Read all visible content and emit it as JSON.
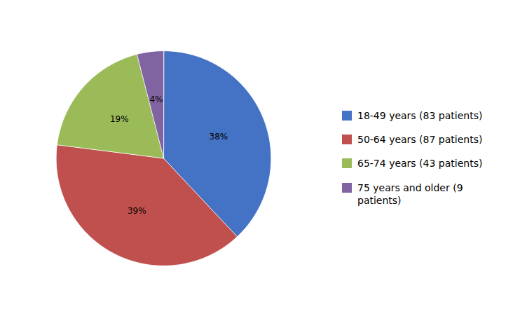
{
  "chart_data": {
    "type": "pie",
    "categories": [
      "18-49 years (83 patients)",
      "50-64 years (87 patients)",
      "65-74 years (43 patients)",
      "75 years and older (9\npatients)"
    ],
    "values": [
      38,
      39,
      19,
      4
    ],
    "value_labels": [
      "38%",
      "39%",
      "19%",
      "4%"
    ],
    "colors": [
      "#4472C4",
      "#C0504D",
      "#9BBB59",
      "#8064A2"
    ],
    "data_labels": true,
    "legend": "right",
    "tick_labels": false
  }
}
